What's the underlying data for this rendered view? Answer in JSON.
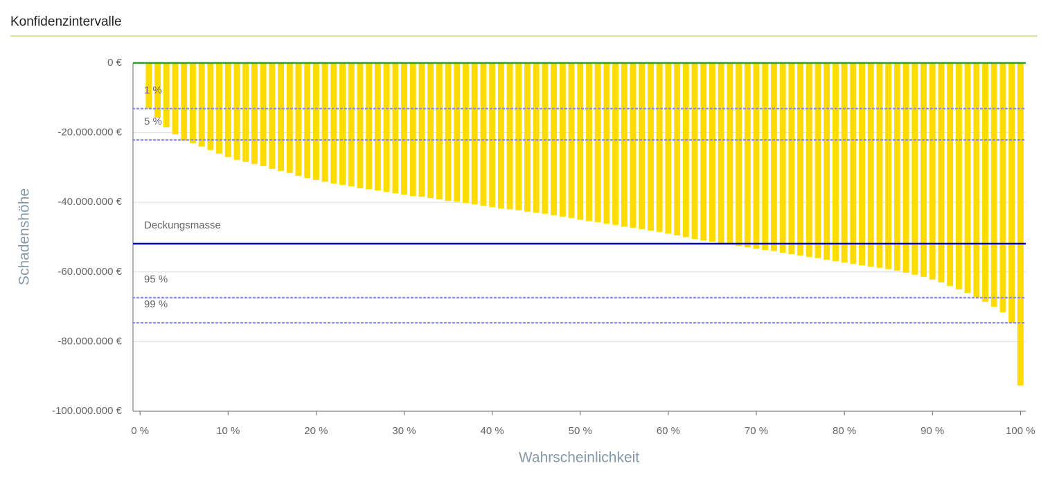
{
  "chart_data": {
    "type": "bar",
    "title": "Konfidenzintervalle",
    "x_label": "Wahrscheinlichkeit",
    "y_label": "Schadenshöhe",
    "color": "#ffdc00",
    "grid": true,
    "x": [
      1,
      2,
      3,
      4,
      5,
      6,
      7,
      8,
      9,
      10,
      11,
      12,
      13,
      14,
      15,
      16,
      17,
      18,
      19,
      20,
      21,
      22,
      23,
      24,
      25,
      26,
      27,
      28,
      29,
      30,
      31,
      32,
      33,
      34,
      35,
      36,
      37,
      38,
      39,
      40,
      41,
      42,
      43,
      44,
      45,
      46,
      47,
      48,
      49,
      50,
      51,
      52,
      53,
      54,
      55,
      56,
      57,
      58,
      59,
      60,
      61,
      62,
      63,
      64,
      65,
      66,
      67,
      68,
      69,
      70,
      71,
      72,
      73,
      74,
      75,
      76,
      77,
      78,
      79,
      80,
      81,
      82,
      83,
      84,
      85,
      86,
      87,
      88,
      89,
      90,
      91,
      92,
      93,
      94,
      95,
      96,
      97,
      98,
      99,
      100
    ],
    "values": [
      -13100000,
      -15700000,
      -18500000,
      -20500000,
      -22300000,
      -23000000,
      -24000000,
      -25000000,
      -26000000,
      -27000000,
      -27800000,
      -28400000,
      -29000000,
      -29600000,
      -30400000,
      -31000000,
      -31600000,
      -32400000,
      -33000000,
      -33600000,
      -34100000,
      -34600000,
      -35000000,
      -35400000,
      -36000000,
      -36200000,
      -36600000,
      -37000000,
      -37400000,
      -37800000,
      -38200000,
      -38400000,
      -38800000,
      -39200000,
      -39600000,
      -39800000,
      -40200000,
      -40600000,
      -41000000,
      -41400000,
      -41800000,
      -42000000,
      -42300000,
      -42700000,
      -43000000,
      -43300000,
      -43700000,
      -44100000,
      -44500000,
      -45000000,
      -45400000,
      -45700000,
      -46100000,
      -46500000,
      -47000000,
      -47300000,
      -47700000,
      -48100000,
      -48500000,
      -49000000,
      -49500000,
      -50000000,
      -50500000,
      -51000000,
      -51300000,
      -51700000,
      -52000000,
      -52500000,
      -52900000,
      -53300000,
      -53700000,
      -54000000,
      -54500000,
      -54900000,
      -55300000,
      -55700000,
      -56000000,
      -56500000,
      -56900000,
      -57300000,
      -57700000,
      -58100000,
      -58500000,
      -58800000,
      -59200000,
      -59600000,
      -60200000,
      -60800000,
      -61400000,
      -62200000,
      -63000000,
      -64000000,
      -65000000,
      -66000000,
      -67200000,
      -68600000,
      -70000000,
      -71600000,
      -74600000,
      -92600000
    ],
    "xlim": [
      -0.8,
      100.6
    ],
    "xticks": [
      {
        "value": 0,
        "label": "0 %"
      },
      {
        "value": 10,
        "label": "10 %"
      },
      {
        "value": 20,
        "label": "20 %"
      },
      {
        "value": 30,
        "label": "30 %"
      },
      {
        "value": 40,
        "label": "40 %"
      },
      {
        "value": 50,
        "label": "50 %"
      },
      {
        "value": 60,
        "label": "60 %"
      },
      {
        "value": 70,
        "label": "70 %"
      },
      {
        "value": 80,
        "label": "80 %"
      },
      {
        "value": 90,
        "label": "90 %"
      },
      {
        "value": 100,
        "label": "100 %"
      }
    ],
    "ylim": [
      -100000000,
      0
    ],
    "yticks": [
      {
        "value": -100000000,
        "label": "-100.000.000 €"
      },
      {
        "value": -80000000,
        "label": "-80.000.000 €"
      },
      {
        "value": -60000000,
        "label": "-60.000.000 €"
      },
      {
        "value": -40000000,
        "label": "-40.000.000 €"
      },
      {
        "value": -20000000,
        "label": "-20.000.000 €"
      },
      {
        "value": 0,
        "label": "0 €"
      }
    ],
    "reference_lines": [
      {
        "label": "1 %",
        "value": -13100000,
        "color": "#8f8fef",
        "style": "dotted"
      },
      {
        "label": "5 %",
        "value": -22100000,
        "color": "#8f8fef",
        "style": "dotted"
      },
      {
        "label": "Deckungsmasse",
        "value": -51900000,
        "color": "#0000cc",
        "style": "solid"
      },
      {
        "label": "95 %",
        "value": -67400000,
        "color": "#8f8fef",
        "style": "dotted"
      },
      {
        "label": "99 %",
        "value": -74600000,
        "color": "#8f8fef",
        "style": "dotted"
      },
      {
        "value": 0,
        "color": "#2e9e2e",
        "style": "solid"
      }
    ]
  }
}
